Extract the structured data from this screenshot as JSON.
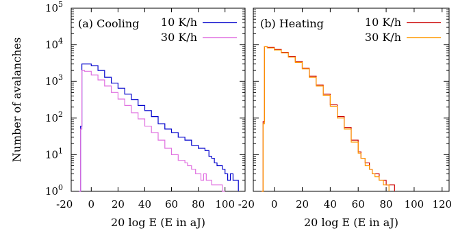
{
  "chart_data": [
    {
      "type": "line",
      "title": "(a) Cooling",
      "xlabel": "20 log E (E in aJ)",
      "ylabel": "Number of avalanches",
      "xlim": [
        -15,
        115
      ],
      "ylim": [
        1,
        100000
      ],
      "yscale": "log",
      "grid": false,
      "legend": "top-right",
      "xticks": [
        "-20",
        "0",
        "20",
        "40",
        "60",
        "80",
        "100"
      ],
      "xtick_values": [
        -20,
        0,
        20,
        40,
        60,
        80,
        100
      ],
      "yticks": [
        "10^0",
        "10^1",
        "10^2",
        "10^3",
        "10^4",
        "10^5"
      ],
      "series": [
        {
          "name": "10 K/h",
          "color": "#0000cc",
          "x": [
            -9,
            -8,
            -7,
            -5,
            0,
            5,
            10,
            15,
            20,
            25,
            30,
            35,
            40,
            45,
            50,
            55,
            60,
            65,
            70,
            75,
            80,
            85,
            88,
            90,
            92,
            94,
            96,
            98,
            100,
            102,
            104,
            106,
            108,
            110
          ],
          "y": [
            1,
            60,
            3000,
            3000,
            2700,
            2000,
            1300,
            900,
            650,
            450,
            320,
            220,
            160,
            110,
            70,
            50,
            40,
            30,
            25,
            18,
            15,
            13,
            9,
            8,
            6,
            5,
            5,
            4,
            3,
            2,
            3,
            2,
            2,
            1
          ]
        },
        {
          "name": "30 K/h",
          "color": "#e070e0",
          "x": [
            -9,
            -8,
            -7,
            -5,
            0,
            5,
            10,
            15,
            20,
            25,
            30,
            35,
            40,
            45,
            50,
            55,
            60,
            65,
            70,
            72,
            75,
            78,
            80,
            82,
            84,
            86,
            88,
            90,
            92,
            94,
            96,
            98,
            100
          ],
          "y": [
            1,
            50,
            2000,
            1900,
            1500,
            1100,
            750,
            500,
            330,
            220,
            140,
            95,
            60,
            40,
            25,
            15,
            10,
            7,
            6,
            5,
            4,
            3,
            3,
            2,
            3,
            2,
            2,
            1.5,
            1.5,
            1.5,
            1.5,
            1,
            1
          ]
        }
      ]
    },
    {
      "type": "line",
      "title": "(b) Heating",
      "xlabel": "20 log E (E in aJ)",
      "ylabel": "",
      "xlim": [
        -15,
        125
      ],
      "ylim": [
        1,
        100000
      ],
      "yscale": "log",
      "grid": false,
      "legend": "top-right",
      "xticks": [
        "-20",
        "0",
        "20",
        "40",
        "60",
        "80",
        "100",
        "120"
      ],
      "xtick_values": [
        -20,
        0,
        20,
        40,
        60,
        80,
        100,
        120
      ],
      "series": [
        {
          "name": "10 K/h",
          "color": "#cc0000",
          "x": [
            -9,
            -8,
            -7,
            -5,
            0,
            5,
            10,
            15,
            20,
            25,
            30,
            35,
            40,
            45,
            50,
            55,
            60,
            62,
            65,
            68,
            70,
            72,
            75,
            78,
            80,
            82,
            84,
            86
          ],
          "y": [
            1,
            80,
            9000,
            8500,
            7500,
            6200,
            4800,
            3500,
            2300,
            1400,
            800,
            450,
            230,
            110,
            55,
            25,
            12,
            8,
            6,
            4,
            3,
            3,
            2,
            2,
            1.5,
            1.5,
            1.5,
            1
          ]
        },
        {
          "name": "30 K/h",
          "color": "#ff9900",
          "x": [
            -9,
            -8,
            -7,
            -5,
            0,
            5,
            10,
            15,
            20,
            25,
            30,
            35,
            40,
            45,
            50,
            55,
            60,
            62,
            65,
            68,
            70,
            72,
            75,
            78,
            80,
            82
          ],
          "y": [
            1,
            70,
            9000,
            8200,
            7200,
            6000,
            4600,
            3300,
            2200,
            1300,
            750,
            420,
            210,
            100,
            50,
            22,
            11,
            8,
            5,
            4,
            3,
            2.5,
            2,
            1.5,
            1.5,
            1
          ]
        }
      ]
    }
  ]
}
